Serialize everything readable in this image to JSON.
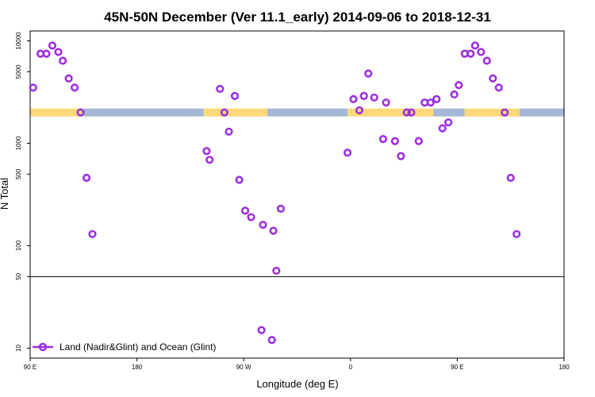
{
  "chart_data": {
    "type": "scatter",
    "title": "45N-50N December (Ver 11.1_early)   2014-09-06 to 2018-12-31",
    "xlabel": "Longitude (deg E)",
    "ylabel": "N Total",
    "yscale": "log",
    "xlim": [
      0,
      360
    ],
    "ylim": [
      8,
      12500
    ],
    "x_ticks": [
      {
        "pos": 0,
        "label": "90 E"
      },
      {
        "pos": 72,
        "label": "180"
      },
      {
        "pos": 144,
        "label": "90 W"
      },
      {
        "pos": 216,
        "label": "0"
      },
      {
        "pos": 288,
        "label": "90 E"
      },
      {
        "pos": 360,
        "label": "180"
      }
    ],
    "y_ticks": [
      {
        "value": 10,
        "label": "10"
      },
      {
        "value": 50,
        "label": "50"
      },
      {
        "value": 100,
        "label": "100"
      },
      {
        "value": 500,
        "label": "500"
      },
      {
        "value": 1000,
        "label": "1000"
      },
      {
        "value": 5000,
        "label": "5000"
      },
      {
        "value": 10000,
        "label": "10000"
      }
    ],
    "reference_line": 50,
    "land_ocean_strip": {
      "y_value": 2000,
      "land_color": "#fdd87a",
      "ocean_color": "#a4b8d8",
      "segments": [
        {
          "x0": 0,
          "x1": 36,
          "type": "land"
        },
        {
          "x0": 36,
          "x1": 117,
          "type": "ocean"
        },
        {
          "x0": 117,
          "x1": 160,
          "type": "land"
        },
        {
          "x0": 160,
          "x1": 214,
          "type": "ocean"
        },
        {
          "x0": 214,
          "x1": 272,
          "type": "land"
        },
        {
          "x0": 272,
          "x1": 293,
          "type": "ocean"
        },
        {
          "x0": 293,
          "x1": 330,
          "type": "land"
        },
        {
          "x0": 330,
          "x1": 360,
          "type": "ocean"
        }
      ]
    },
    "series": [
      {
        "name": "Land (Nadir&Glint) and Ocean (Glint)",
        "color": "#9b30e0",
        "points": [
          [
            2,
            3500
          ],
          [
            7,
            7500
          ],
          [
            11,
            7500
          ],
          [
            15,
            9000
          ],
          [
            19,
            7800
          ],
          [
            22,
            6400
          ],
          [
            26,
            4300
          ],
          [
            30,
            3500
          ],
          [
            34,
            2000
          ],
          [
            38,
            460
          ],
          [
            42,
            130
          ],
          [
            119,
            840
          ],
          [
            121,
            690
          ],
          [
            128,
            3400
          ],
          [
            131,
            2000
          ],
          [
            134,
            1300
          ],
          [
            138,
            2900
          ],
          [
            141,
            440
          ],
          [
            145,
            220
          ],
          [
            149,
            190
          ],
          [
            157,
            160
          ],
          [
            164,
            140
          ],
          [
            166,
            57
          ],
          [
            169,
            230
          ],
          [
            156,
            15
          ],
          [
            163,
            12
          ],
          [
            214,
            810
          ],
          [
            218,
            2700
          ],
          [
            222,
            2100
          ],
          [
            225,
            2900
          ],
          [
            228,
            4800
          ],
          [
            232,
            2800
          ],
          [
            238,
            1100
          ],
          [
            240,
            2500
          ],
          [
            246,
            1050
          ],
          [
            250,
            750
          ],
          [
            254,
            2000
          ],
          [
            257,
            2000
          ],
          [
            262,
            1050
          ],
          [
            266,
            2500
          ],
          [
            270,
            2500
          ],
          [
            274,
            2700
          ],
          [
            278,
            1400
          ],
          [
            282,
            1600
          ],
          [
            286,
            3000
          ],
          [
            289,
            3700
          ],
          [
            293,
            7500
          ],
          [
            297,
            7500
          ],
          [
            300,
            9000
          ],
          [
            304,
            7800
          ],
          [
            308,
            6400
          ],
          [
            312,
            4300
          ],
          [
            316,
            3500
          ],
          [
            320,
            2000
          ],
          [
            324,
            460
          ],
          [
            328,
            130
          ]
        ]
      }
    ],
    "legend": {
      "position": "bottom-left",
      "label": "Land (Nadir&Glint) and Ocean (Glint)"
    }
  }
}
